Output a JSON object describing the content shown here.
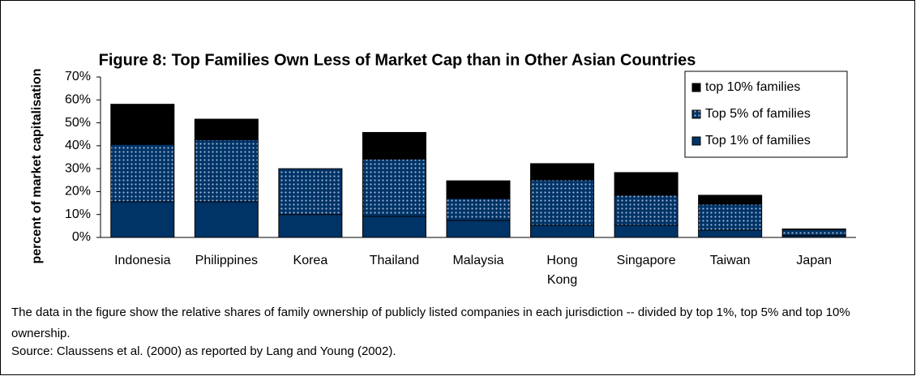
{
  "chart_data": {
    "type": "stacked_bar",
    "title": "Figure 8: Top Families Own Less of Market Cap than in Other Asian Countries",
    "y_label": "percent of market capitalisation",
    "categories": [
      "Indonesia",
      "Philippines",
      "Korea",
      "Thailand",
      "Malaysia",
      "Hong Kong",
      "Singapore",
      "Taiwan",
      "Japan"
    ],
    "series": [
      {
        "name": "Top 1% of families",
        "color": "#003366",
        "pattern": "solid",
        "values": [
          15.6,
          15.6,
          10,
          9.2,
          7.4,
          5.3,
          5.3,
          3.2,
          0.8
        ]
      },
      {
        "name": "Top 5% of families",
        "color": "#003366",
        "pattern": "dotted",
        "values": [
          25,
          27,
          20,
          25,
          9.6,
          19.8,
          13.1,
          11.3,
          2.6
        ]
      },
      {
        "name": "top 10% families",
        "color": "#000000",
        "pattern": "solid",
        "values": [
          17.5,
          9,
          0,
          11.6,
          7.7,
          7.1,
          9.9,
          3.9,
          0.3
        ]
      }
    ],
    "ylim": [
      0,
      70
    ],
    "yticks": [
      {
        "value": 0,
        "label": "0%"
      },
      {
        "value": 10,
        "label": "10%"
      },
      {
        "value": 20,
        "label": "20%"
      },
      {
        "value": 30,
        "label": "30%"
      },
      {
        "value": 40,
        "label": "40%"
      },
      {
        "value": 50,
        "label": "50%"
      },
      {
        "value": 60,
        "label": "60%"
      },
      {
        "value": 70,
        "label": "70%"
      }
    ],
    "legend": "top-right",
    "notes": [
      "The data in the figure show the relative shares of family ownership of publicly listed companies in each jurisdiction -- divided by top 1%, top 5% and top 10% ownership.",
      "Source: Claussens et al. (2000) as reported by Lang and Young (2002)."
    ]
  }
}
